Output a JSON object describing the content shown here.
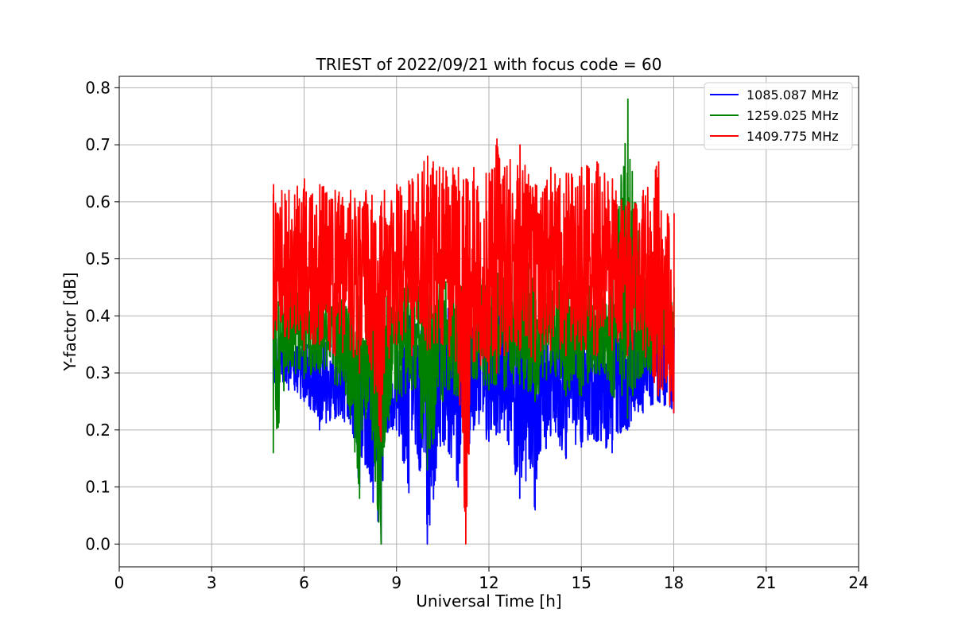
{
  "chart_data": {
    "type": "line",
    "title": "TRIEST of 2022/09/21 with focus code = 60",
    "xlabel": "Universal Time [h]",
    "ylabel": "Y-factor [dB]",
    "xlim": [
      0,
      24
    ],
    "ylim": [
      -0.04,
      0.82
    ],
    "xticks": [
      0,
      3,
      6,
      9,
      12,
      15,
      18,
      21,
      24
    ],
    "yticks": [
      0.0,
      0.1,
      0.2,
      0.3,
      0.4,
      0.5,
      0.6,
      0.7,
      0.8
    ],
    "xtick_labels": [
      "0",
      "3",
      "6",
      "9",
      "12",
      "15",
      "18",
      "21",
      "24"
    ],
    "ytick_labels": [
      "0.0",
      "0.1",
      "0.2",
      "0.3",
      "0.4",
      "0.5",
      "0.6",
      "0.7",
      "0.8"
    ],
    "grid": true,
    "legend_position": "top-right",
    "series": [
      {
        "name": "1085.087 MHz",
        "color": "#0000ff",
        "x": [
          5.0,
          5.5,
          6.0,
          6.5,
          7.0,
          7.5,
          7.8,
          8.0,
          8.5,
          8.6,
          9.0,
          9.4,
          9.5,
          10.0,
          10.5,
          11.0,
          11.5,
          12.0,
          12.5,
          13.0,
          13.5,
          14.0,
          14.5,
          15.0,
          15.5,
          16.0,
          16.5,
          17.0,
          17.5,
          18.0
        ],
        "y_min": [
          0.28,
          0.27,
          0.25,
          0.2,
          0.22,
          0.21,
          0.1,
          0.14,
          0.0,
          0.18,
          0.2,
          0.09,
          0.2,
          0.0,
          0.18,
          0.1,
          0.2,
          0.18,
          0.2,
          0.08,
          0.06,
          0.19,
          0.15,
          0.17,
          0.18,
          0.16,
          0.2,
          0.23,
          0.25,
          0.23
        ],
        "y_max": [
          0.37,
          0.36,
          0.35,
          0.36,
          0.35,
          0.37,
          0.34,
          0.35,
          0.3,
          0.33,
          0.35,
          0.4,
          0.39,
          0.42,
          0.42,
          0.45,
          0.4,
          0.42,
          0.4,
          0.4,
          0.42,
          0.4,
          0.38,
          0.4,
          0.38,
          0.41,
          0.4,
          0.38,
          0.39,
          0.38
        ]
      },
      {
        "name": "1259.025 MHz",
        "color": "#008000",
        "x": [
          5.0,
          5.5,
          6.0,
          6.5,
          7.0,
          7.5,
          7.8,
          8.0,
          8.5,
          8.6,
          9.0,
          9.5,
          10.0,
          10.5,
          11.0,
          11.5,
          12.0,
          12.5,
          13.0,
          13.5,
          14.0,
          14.5,
          15.0,
          15.5,
          16.0,
          16.5,
          17.0,
          17.5,
          18.0
        ],
        "y_min": [
          0.16,
          0.3,
          0.29,
          0.3,
          0.28,
          0.22,
          0.08,
          0.22,
          0.0,
          0.17,
          0.25,
          0.27,
          0.13,
          0.25,
          0.26,
          0.29,
          0.27,
          0.27,
          0.28,
          0.25,
          0.3,
          0.26,
          0.26,
          0.3,
          0.26,
          0.22,
          0.3,
          0.29,
          0.3
        ],
        "y_max": [
          0.45,
          0.45,
          0.46,
          0.45,
          0.44,
          0.45,
          0.45,
          0.46,
          0.4,
          0.43,
          0.46,
          0.46,
          0.47,
          0.48,
          0.47,
          0.46,
          0.47,
          0.48,
          0.52,
          0.48,
          0.47,
          0.46,
          0.47,
          0.46,
          0.47,
          0.78,
          0.47,
          0.46,
          0.45
        ]
      },
      {
        "name": "1409.775 MHz",
        "color": "#ff0000",
        "x": [
          5.0,
          5.5,
          6.0,
          6.5,
          7.0,
          7.5,
          7.8,
          8.0,
          8.5,
          8.6,
          9.0,
          9.5,
          10.0,
          10.5,
          11.0,
          11.25,
          11.5,
          12.0,
          12.25,
          12.5,
          13.0,
          13.5,
          14.0,
          14.5,
          15.0,
          15.5,
          16.0,
          16.5,
          17.0,
          17.5,
          18.0
        ],
        "y_min": [
          0.36,
          0.36,
          0.34,
          0.35,
          0.33,
          0.34,
          0.3,
          0.36,
          0.18,
          0.3,
          0.35,
          0.33,
          0.34,
          0.35,
          0.3,
          0.0,
          0.32,
          0.3,
          0.3,
          0.33,
          0.34,
          0.32,
          0.34,
          0.33,
          0.34,
          0.33,
          0.34,
          0.33,
          0.34,
          0.26,
          0.23
        ],
        "y_max": [
          0.63,
          0.62,
          0.64,
          0.63,
          0.62,
          0.62,
          0.6,
          0.62,
          0.6,
          0.62,
          0.63,
          0.64,
          0.68,
          0.66,
          0.66,
          0.64,
          0.66,
          0.65,
          0.71,
          0.66,
          0.7,
          0.63,
          0.66,
          0.65,
          0.66,
          0.67,
          0.64,
          0.6,
          0.62,
          0.67,
          0.58
        ]
      }
    ]
  }
}
